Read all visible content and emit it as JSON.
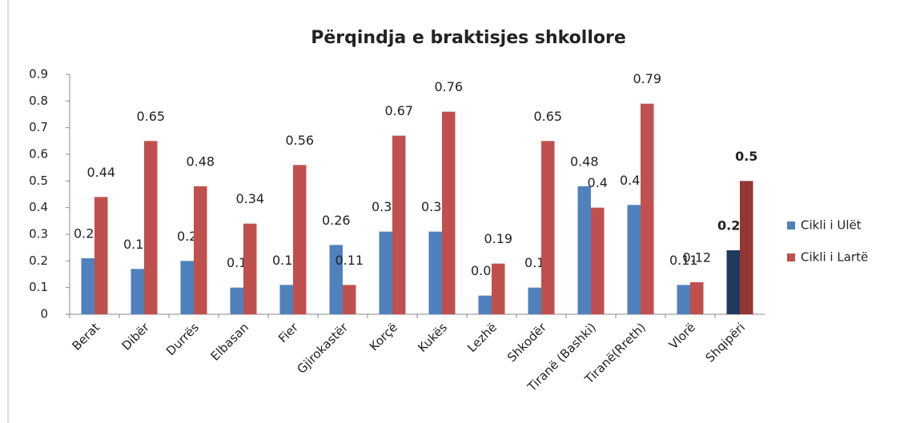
{
  "chart_data": {
    "type": "bar",
    "title": "Përqindja e braktisjes shkollore",
    "categories": [
      "Berat",
      "Dibër",
      "Durrës",
      "Elbasan",
      "Fier",
      "Gjirokastër",
      "Korçë",
      "Kukës",
      "Lezhë",
      "Shkodër",
      "Tiranë (Bashki)",
      "Tiranë(Rreth)",
      "Vlorë",
      "Shqipëri"
    ],
    "series": [
      {
        "name": "Cikli i Ulët",
        "color": "#4f81bd",
        "values": [
          0.21,
          0.17,
          0.2,
          0.1,
          0.11,
          0.26,
          0.31,
          0.31,
          0.07,
          0.1,
          0.48,
          0.41,
          0.11,
          0.24
        ],
        "colors": [
          "#4f81bd",
          "#4f81bd",
          "#4f81bd",
          "#4f81bd",
          "#4f81bd",
          "#4f81bd",
          "#4f81bd",
          "#4f81bd",
          "#4f81bd",
          "#4f81bd",
          "#4f81bd",
          "#4f81bd",
          "#4f81bd",
          "#1f3a5f"
        ]
      },
      {
        "name": "Cikli i Lartë",
        "color": "#c0504d",
        "values": [
          0.44,
          0.65,
          0.48,
          0.34,
          0.56,
          0.11,
          0.67,
          0.76,
          0.19,
          0.65,
          0.4,
          0.79,
          0.12,
          0.5
        ],
        "colors": [
          "#c0504d",
          "#c0504d",
          "#c0504d",
          "#c0504d",
          "#c0504d",
          "#c0504d",
          "#c0504d",
          "#c0504d",
          "#c0504d",
          "#c0504d",
          "#c0504d",
          "#c0504d",
          "#c0504d",
          "#943634"
        ]
      }
    ],
    "emphasis": [
      false,
      false,
      false,
      false,
      false,
      false,
      false,
      false,
      false,
      false,
      false,
      false,
      false,
      true
    ],
    "ylim": [
      0,
      0.9
    ],
    "yticks": [
      0,
      0.1,
      0.2,
      0.3,
      0.4,
      0.5,
      0.6,
      0.7,
      0.8,
      0.9
    ],
    "grid": false,
    "legend": "right"
  }
}
